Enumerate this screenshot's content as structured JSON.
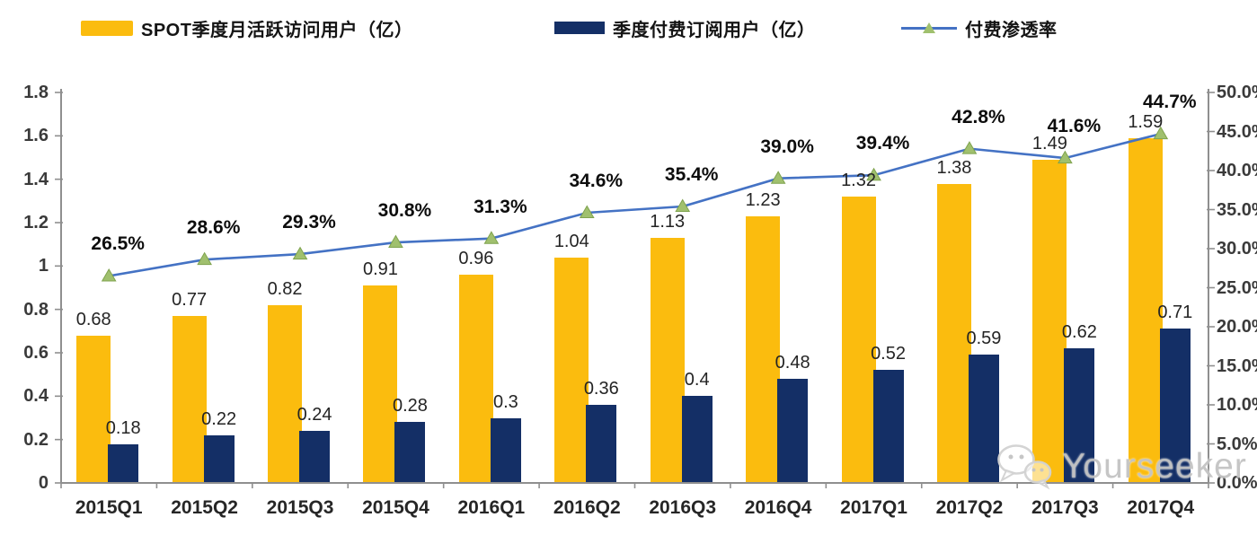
{
  "legend": {
    "items": [
      {
        "label": "SPOT季度月活跃访问用户（亿）",
        "swatch": "bar",
        "color": "#FBBC0E"
      },
      {
        "label": "季度付费订阅用户（亿）",
        "swatch": "bar",
        "color": "#142F66"
      },
      {
        "label": "付费渗透率",
        "swatch": "line-triangle-marker",
        "color": "#4472C4",
        "marker_color": "#A0C06E"
      }
    ]
  },
  "chart_data": {
    "type": "combo bar+line",
    "title": "",
    "legend_position": "top",
    "grid": false,
    "categories": [
      "2015Q1",
      "2015Q2",
      "2015Q3",
      "2015Q4",
      "2016Q1",
      "2016Q2",
      "2016Q3",
      "2016Q4",
      "2017Q1",
      "2017Q2",
      "2017Q3",
      "2017Q4"
    ],
    "series": [
      {
        "name": "SPOT季度月活跃访问用户（亿）",
        "chart": "bar",
        "axis": "left",
        "color": "#FBBC0E",
        "values": [
          0.68,
          0.77,
          0.82,
          0.91,
          0.96,
          1.04,
          1.13,
          1.23,
          1.32,
          1.38,
          1.49,
          1.59
        ],
        "data_labels": [
          "0.68",
          "0.77",
          "0.82",
          "0.91",
          "0.96",
          "1.04",
          "1.13",
          "1.23",
          "1.32",
          "1.38",
          "1.49",
          "1.59"
        ]
      },
      {
        "name": "季度付费订阅用户（亿）",
        "chart": "bar",
        "axis": "left",
        "color": "#142F66",
        "values": [
          0.18,
          0.22,
          0.24,
          0.28,
          0.3,
          0.36,
          0.4,
          0.48,
          0.52,
          0.59,
          0.62,
          0.71
        ],
        "data_labels": [
          "0.18",
          "0.22",
          "0.24",
          "0.28",
          "0.3",
          "0.36",
          "0.4",
          "0.48",
          "0.52",
          "0.59",
          "0.62",
          "0.71"
        ]
      },
      {
        "name": "付费渗透率",
        "chart": "line",
        "axis": "right",
        "color": "#4472C4",
        "marker": "triangle",
        "marker_color": "#A0C06E",
        "marker_edge_color": "#7FA34E",
        "values": [
          26.5,
          28.6,
          29.3,
          30.8,
          31.3,
          34.6,
          35.4,
          39.0,
          39.4,
          42.8,
          41.6,
          44.7
        ],
        "data_labels": [
          "26.5%",
          "28.6%",
          "29.3%",
          "30.8%",
          "31.3%",
          "34.6%",
          "35.4%",
          "39.0%",
          "39.4%",
          "42.8%",
          "41.6%",
          "44.7%"
        ]
      }
    ],
    "left_axis": {
      "min": 0,
      "max": 1.8,
      "tick_labels": [
        "0",
        "0.2",
        "0.4",
        "0.6",
        "0.8",
        "1",
        "1.2",
        "1.4",
        "1.6",
        "1.8"
      ]
    },
    "right_axis": {
      "min": 0,
      "max": 50,
      "tick_labels": [
        "0.0%",
        "5.0%",
        "10.0%",
        "15.0%",
        "20.0%",
        "25.0%",
        "30.0%",
        "35.0%",
        "40.0%",
        "45.0%",
        "50.0%"
      ]
    },
    "axis_color": "#8f8f8f"
  },
  "watermark": {
    "text": "Yourseeker",
    "icon": "wechat-icon"
  }
}
